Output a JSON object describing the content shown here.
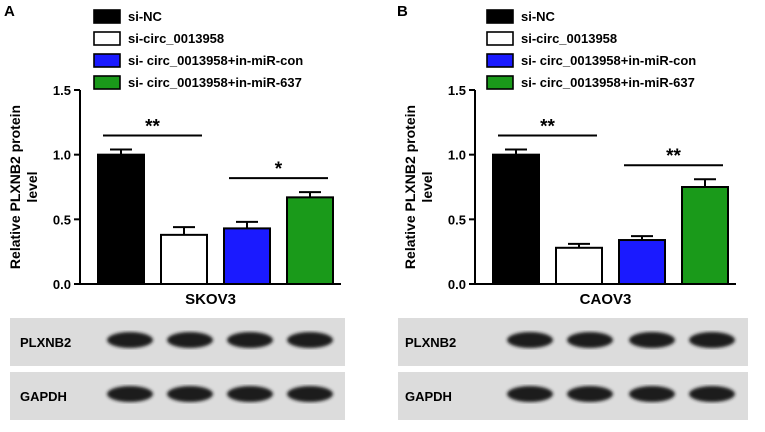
{
  "legend": [
    {
      "label": "si-NC",
      "color": "#000000"
    },
    {
      "label": "si-circ_0013958",
      "color": "#ffffff"
    },
    {
      "label": "si- circ_0013958+in-miR-con",
      "color": "#1a1aff"
    },
    {
      "label": "si- circ_0013958+in-miR-637",
      "color": "#1a9a1a"
    }
  ],
  "chart_data": [
    {
      "type": "bar",
      "panel_letter": "A",
      "title": "",
      "xlabel": "SKOV3",
      "ylabel": "Relative PLXNB2 protein level",
      "ylim": [
        0,
        1.5
      ],
      "yticks": [
        "0.0",
        "0.5",
        "1.0",
        "1.5"
      ],
      "categories": [
        "si-NC",
        "si-circ_0013958",
        "si- circ_0013958+in-miR-con",
        "si- circ_0013958+in-miR-637"
      ],
      "values": [
        1.0,
        0.38,
        0.43,
        0.67
      ],
      "errors": [
        0.04,
        0.06,
        0.05,
        0.04
      ],
      "colors": [
        "#000000",
        "#ffffff",
        "#1a1aff",
        "#1a9a1a"
      ],
      "significance": [
        {
          "from": 0,
          "to": 1,
          "label": "**"
        },
        {
          "from": 2,
          "to": 3,
          "label": "*"
        }
      ],
      "blot": {
        "rows": [
          "PLXNB2",
          "GAPDH"
        ]
      }
    },
    {
      "type": "bar",
      "panel_letter": "B",
      "title": "",
      "xlabel": "CAOV3",
      "ylabel": "Relative PLXNB2 protein level",
      "ylim": [
        0,
        1.5
      ],
      "yticks": [
        "0.0",
        "0.5",
        "1.0",
        "1.5"
      ],
      "categories": [
        "si-NC",
        "si-circ_0013958",
        "si- circ_0013958+in-miR-con",
        "si- circ_0013958+in-miR-637"
      ],
      "values": [
        1.0,
        0.28,
        0.34,
        0.75
      ],
      "errors": [
        0.04,
        0.03,
        0.03,
        0.06
      ],
      "colors": [
        "#000000",
        "#ffffff",
        "#1a1aff",
        "#1a9a1a"
      ],
      "significance": [
        {
          "from": 0,
          "to": 1,
          "label": "**"
        },
        {
          "from": 2,
          "to": 3,
          "label": "**"
        }
      ],
      "blot": {
        "rows": [
          "PLXNB2",
          "GAPDH"
        ]
      }
    }
  ]
}
